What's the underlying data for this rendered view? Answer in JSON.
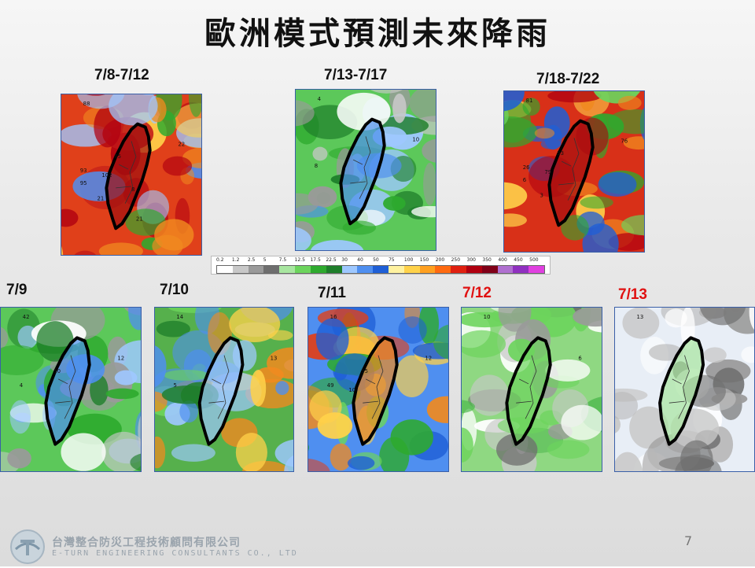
{
  "title": "歐洲模式預測未來降雨",
  "periods": [
    {
      "label": "7/8-7/12",
      "theme": "heavy",
      "highlight": false
    },
    {
      "label": "7/13-7/17",
      "theme": "green",
      "highlight": false
    },
    {
      "label": "7/18-7/22",
      "theme": "heavy",
      "highlight": false
    }
  ],
  "days": [
    {
      "label": "7/9",
      "theme": "green",
      "highlight": false
    },
    {
      "label": "7/10",
      "theme": "blue",
      "highlight": false
    },
    {
      "label": "7/11",
      "theme": "orange",
      "highlight": false
    },
    {
      "label": "7/12",
      "theme": "lightgreen",
      "highlight": true
    },
    {
      "label": "7/13",
      "theme": "white",
      "highlight": true
    }
  ],
  "colorbar": {
    "ticks": [
      "0.2",
      "1.2",
      "2.5",
      "5",
      "7.5",
      "12.5",
      "17.5",
      "22.5",
      "30",
      "40",
      "50",
      "75",
      "100",
      "150",
      "200",
      "250",
      "300",
      "350",
      "400",
      "450",
      "500"
    ],
    "colors": [
      "#ffffff",
      "#c8c8c8",
      "#9a9a9a",
      "#6e6e6e",
      "#a8e6a0",
      "#6cd45c",
      "#2eaa2e",
      "#1e7e2a",
      "#9ec8ff",
      "#4f8ff0",
      "#1f5fd6",
      "#fff2a0",
      "#ffd24a",
      "#ffa020",
      "#ff6a10",
      "#e02010",
      "#b00010",
      "#800018",
      "#b070d0",
      "#9030c0",
      "#e040e0"
    ]
  },
  "map_numbers": {
    "m0": [
      "88",
      "22",
      "85",
      "93",
      "102",
      "95",
      "21",
      "21",
      "8"
    ],
    "m1": [
      "4",
      "10",
      "6",
      "8"
    ],
    "m2": [
      "81",
      "76",
      "53",
      "26",
      "79",
      "6",
      "3"
    ],
    "d0": [
      "42",
      "12",
      "10",
      "4"
    ],
    "d1": [
      "14",
      "13",
      "3",
      "5"
    ],
    "d2": [
      "16",
      "12",
      "55",
      "49",
      "10"
    ],
    "d3": [
      "10",
      "6"
    ],
    "d4": [
      "13"
    ]
  },
  "page_number": "7",
  "company": {
    "name_cn": "台灣整合防災工程技術顧問有限公司",
    "name_en": "E-TURN ENGINEERING CONSULTANTS CO., LTD"
  }
}
